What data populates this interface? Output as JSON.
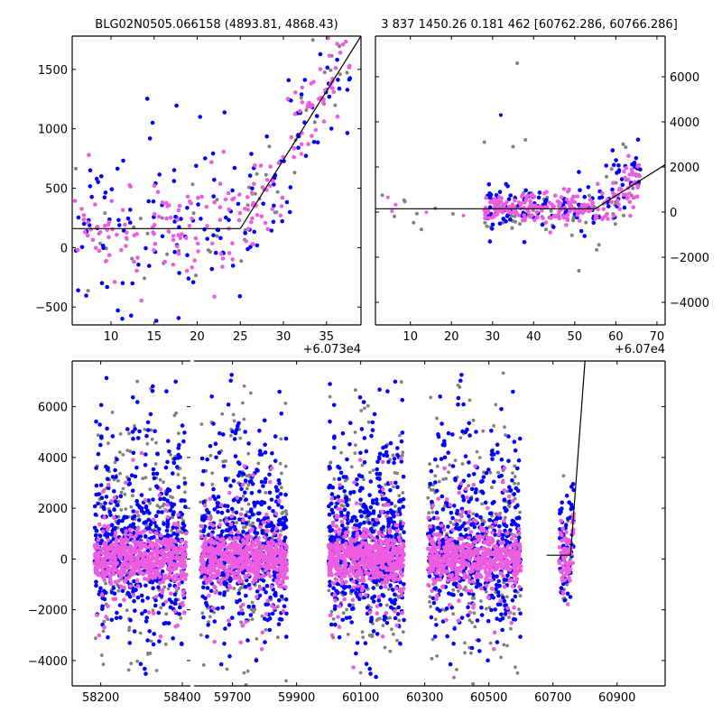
{
  "colors": {
    "grey": "#808080",
    "blue": "#0000ff",
    "pink": "#ee5ddf",
    "model": "#000000",
    "frame": "#000000"
  },
  "chart_data": [
    {
      "type": "scatter",
      "id": "top_left",
      "title": "BLG02N0505.066158 (4893.81, 4868.43)",
      "x_offset_label": "+6.073e4",
      "xlim": [
        5.5,
        39
      ],
      "ylim": [
        -650,
        1780
      ],
      "xticks": [
        10,
        15,
        20,
        25,
        30,
        35
      ],
      "yticks": [
        -500,
        0,
        500,
        1000,
        1500
      ],
      "ytick_side": "left",
      "model_line": {
        "x": [
          5.5,
          25,
          39
        ],
        "y": [
          160,
          160,
          1780
        ]
      }
    },
    {
      "type": "scatter",
      "id": "top_right",
      "title": "3 837 1450.26 0.181 462 [60762.286, 60766.286]",
      "x_offset_label": "+6.07e4",
      "xlim": [
        1.5,
        72
      ],
      "ylim": [
        -5000,
        7800
      ],
      "xticks": [
        10,
        20,
        30,
        40,
        50,
        60,
        70
      ],
      "yticks": [
        -4000,
        -2000,
        0,
        2000,
        4000,
        6000
      ],
      "ytick_side": "right",
      "model_line": {
        "x": [
          1.5,
          55,
          72
        ],
        "y": [
          150,
          150,
          2100
        ]
      }
    },
    {
      "type": "scatter",
      "id": "bottom",
      "xlim_segment_1": [
        58130,
        58420
      ],
      "xlim_segment_2": [
        59580,
        61050
      ],
      "ylim": [
        -5000,
        7800
      ],
      "xticks_segment_1": [
        58200,
        58400
      ],
      "xticks_segment_2": [
        59700,
        59900,
        60100,
        60300,
        60500,
        60700,
        60900
      ],
      "yticks": [
        -4000,
        -2000,
        0,
        2000,
        4000,
        6000
      ],
      "ytick_side": "left",
      "seasons": [
        [
          58185,
          58410
        ],
        [
          59600,
          59870
        ],
        [
          60000,
          60235
        ],
        [
          60310,
          60600
        ],
        [
          60720,
          60765
        ]
      ],
      "model_line": {
        "x": [
          60680,
          60755,
          60800
        ],
        "y": [
          150,
          150,
          7800
        ]
      }
    }
  ]
}
